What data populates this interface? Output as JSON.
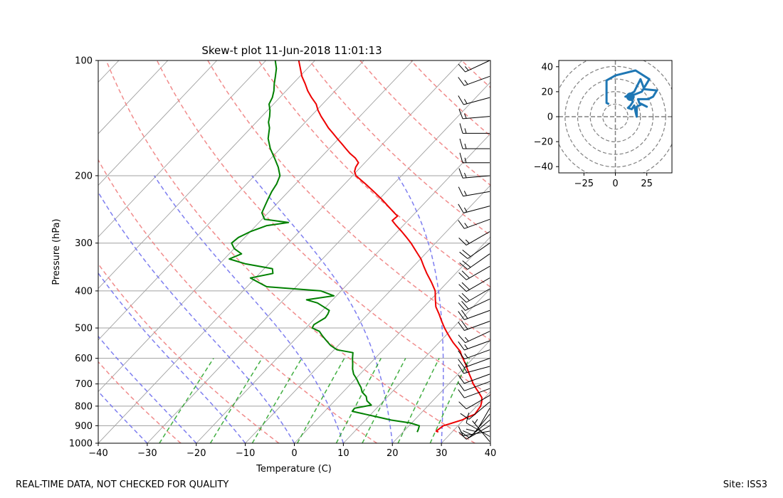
{
  "footer": {
    "left_text": "REAL-TIME DATA, NOT CHECKED FOR QUALITY",
    "right_text": "Site: ISS3"
  },
  "colors": {
    "temperature": "#ee0000",
    "dewpoint": "#008000",
    "dry_adiabat": "#f08080",
    "moist_adiabat": "#7070ee",
    "mixing_ratio": "#20a020",
    "isotherm": "#a0a0a0",
    "hodograph": "#1f77b4",
    "barb": "#000000"
  },
  "chart_data": [
    {
      "type": "line",
      "kind": "skew-t",
      "title": "Skew-t plot 11-Jun-2018 11:01:13",
      "xlabel": "Temperature (C)",
      "ylabel": "Pressure (hPa)",
      "xlim": [
        -40,
        40
      ],
      "ylim": [
        1000,
        100
      ],
      "yscale": "log",
      "xticks": [
        -40,
        -30,
        -20,
        -10,
        0,
        10,
        20,
        30,
        40
      ],
      "yticks": [
        100,
        200,
        300,
        400,
        500,
        600,
        700,
        800,
        900,
        1000
      ],
      "grid": true,
      "series": [
        {
          "id": "temperature",
          "points": [
            [
              935,
              27.2
            ],
            [
              930,
              26.6
            ],
            [
              915,
              26.8
            ],
            [
              900,
              27.0
            ],
            [
              890,
              27.9
            ],
            [
              880,
              28.8
            ],
            [
              868,
              29.8
            ],
            [
              855,
              30.3
            ],
            [
              840,
              31.2
            ],
            [
              820,
              31.0
            ],
            [
              800,
              30.8
            ],
            [
              780,
              30.2
            ],
            [
              760,
              29.4
            ],
            [
              740,
              28.0
            ],
            [
              720,
              26.5
            ],
            [
              700,
              25.0
            ],
            [
              680,
              23.7
            ],
            [
              660,
              22.3
            ],
            [
              640,
              20.9
            ],
            [
              620,
              19.5
            ],
            [
              600,
              17.9
            ],
            [
              590,
              17.1
            ],
            [
              575,
              16.0
            ],
            [
              560,
              14.4
            ],
            [
              545,
              12.8
            ],
            [
              530,
              11.3
            ],
            [
              515,
              9.8
            ],
            [
              500,
              8.3
            ],
            [
              480,
              6.4
            ],
            [
              460,
              4.5
            ],
            [
              440,
              2.4
            ],
            [
              420,
              0.8
            ],
            [
              400,
              -0.8
            ],
            [
              380,
              -3.2
            ],
            [
              360,
              -5.9
            ],
            [
              345,
              -7.9
            ],
            [
              330,
              -9.9
            ],
            [
              315,
              -12.4
            ],
            [
              300,
              -15.0
            ],
            [
              290,
              -17.0
            ],
            [
              280,
              -19.1
            ],
            [
              270,
              -21.4
            ],
            [
              262,
              -23.2
            ],
            [
              255,
              -23.0
            ],
            [
              250,
              -24.3
            ],
            [
              240,
              -26.9
            ],
            [
              230,
              -29.6
            ],
            [
              220,
              -32.6
            ],
            [
              210,
              -35.8
            ],
            [
              200,
              -39.3
            ],
            [
              195,
              -40.4
            ],
            [
              190,
              -41.0
            ],
            [
              185,
              -41.3
            ],
            [
              180,
              -42.8
            ],
            [
              175,
              -44.8
            ],
            [
              170,
              -46.6
            ],
            [
              165,
              -48.4
            ],
            [
              160,
              -50.3
            ],
            [
              155,
              -52.2
            ],
            [
              150,
              -54.2
            ],
            [
              145,
              -56.0
            ],
            [
              140,
              -57.9
            ],
            [
              135,
              -59.7
            ],
            [
              130,
              -61.3
            ],
            [
              125,
              -63.5
            ],
            [
              120,
              -65.6
            ],
            [
              115,
              -67.5
            ],
            [
              110,
              -69.6
            ],
            [
              105,
              -71.4
            ],
            [
              100,
              -73.3
            ]
          ]
        },
        {
          "id": "dewpoint",
          "points": [
            [
              935,
              22.9
            ],
            [
              920,
              22.6
            ],
            [
              900,
              22.1
            ],
            [
              885,
              19.7
            ],
            [
              870,
              15.3
            ],
            [
              855,
              12.1
            ],
            [
              840,
              8.9
            ],
            [
              825,
              5.6
            ],
            [
              810,
              5.5
            ],
            [
              795,
              8.3
            ],
            [
              775,
              6.6
            ],
            [
              755,
              5.6
            ],
            [
              735,
              3.9
            ],
            [
              715,
              2.8
            ],
            [
              700,
              1.7
            ],
            [
              680,
              0.3
            ],
            [
              660,
              -1.3
            ],
            [
              640,
              -2.5
            ],
            [
              620,
              -3.5
            ],
            [
              600,
              -4.6
            ],
            [
              580,
              -5.6
            ],
            [
              570,
              -9.4
            ],
            [
              555,
              -11.6
            ],
            [
              540,
              -13.3
            ],
            [
              525,
              -15.0
            ],
            [
              510,
              -16.6
            ],
            [
              500,
              -18.7
            ],
            [
              490,
              -19.0
            ],
            [
              480,
              -18.5
            ],
            [
              470,
              -18.0
            ],
            [
              460,
              -18.2
            ],
            [
              450,
              -18.6
            ],
            [
              440,
              -20.5
            ],
            [
              430,
              -22.5
            ],
            [
              422,
              -25.3
            ],
            [
              412,
              -20.5
            ],
            [
              400,
              -24.1
            ],
            [
              390,
              -36.0
            ],
            [
              380,
              -38.5
            ],
            [
              370,
              -41.0
            ],
            [
              360,
              -37.3
            ],
            [
              350,
              -38.3
            ],
            [
              340,
              -44.7
            ],
            [
              330,
              -49.0
            ],
            [
              320,
              -47.5
            ],
            [
              310,
              -50.0
            ],
            [
              300,
              -51.6
            ],
            [
              290,
              -51.3
            ],
            [
              280,
              -50.0
            ],
            [
              270,
              -47.8
            ],
            [
              265,
              -44.0
            ],
            [
              260,
              -49.5
            ],
            [
              250,
              -51.3
            ],
            [
              240,
              -52.0
            ],
            [
              230,
              -52.7
            ],
            [
              220,
              -53.4
            ],
            [
              210,
              -53.9
            ],
            [
              200,
              -54.8
            ],
            [
              190,
              -56.8
            ],
            [
              180,
              -59.3
            ],
            [
              170,
              -62.0
            ],
            [
              160,
              -64.4
            ],
            [
              150,
              -66.2
            ],
            [
              145,
              -67.5
            ],
            [
              140,
              -68.4
            ],
            [
              135,
              -69.5
            ],
            [
              130,
              -70.9
            ],
            [
              125,
              -71.5
            ],
            [
              120,
              -72.5
            ],
            [
              115,
              -73.8
            ],
            [
              110,
              -75.0
            ],
            [
              105,
              -76.3
            ],
            [
              100,
              -78.1
            ]
          ]
        }
      ],
      "dry_adiabats_theta_K": [
        250,
        270,
        290,
        310,
        330,
        350,
        370,
        390,
        410,
        430,
        450,
        470
      ],
      "moist_adiabats_start_C": [
        -40,
        -30,
        -20,
        -10,
        0,
        10,
        20,
        30
      ],
      "mixing_ratio_lines_g_kg": [
        0.4,
        1,
        2,
        4,
        7,
        10,
        16,
        24
      ],
      "wind_barbs": [
        {
          "p": 990,
          "spd": 5,
          "dir": 320
        },
        {
          "p": 960,
          "spd": 10,
          "dir": 300
        },
        {
          "p": 930,
          "spd": 10,
          "dir": 260
        },
        {
          "p": 900,
          "spd": 10,
          "dir": 240
        },
        {
          "p": 870,
          "spd": 10,
          "dir": 230
        },
        {
          "p": 840,
          "spd": 10,
          "dir": 220
        },
        {
          "p": 810,
          "spd": 10,
          "dir": 210
        },
        {
          "p": 780,
          "spd": 10,
          "dir": 230
        },
        {
          "p": 750,
          "spd": 10,
          "dir": 240
        },
        {
          "p": 720,
          "spd": 10,
          "dir": 250
        },
        {
          "p": 690,
          "spd": 10,
          "dir": 250
        },
        {
          "p": 660,
          "spd": 10,
          "dir": 250
        },
        {
          "p": 630,
          "spd": 15,
          "dir": 255
        },
        {
          "p": 600,
          "spd": 15,
          "dir": 250
        },
        {
          "p": 570,
          "spd": 15,
          "dir": 250
        },
        {
          "p": 540,
          "spd": 15,
          "dir": 250
        },
        {
          "p": 510,
          "spd": 15,
          "dir": 245
        },
        {
          "p": 480,
          "spd": 20,
          "dir": 250
        },
        {
          "p": 450,
          "spd": 20,
          "dir": 250
        },
        {
          "p": 420,
          "spd": 20,
          "dir": 245
        },
        {
          "p": 395,
          "spd": 20,
          "dir": 240
        },
        {
          "p": 370,
          "spd": 20,
          "dir": 240
        },
        {
          "p": 345,
          "spd": 20,
          "dir": 240
        },
        {
          "p": 320,
          "spd": 20,
          "dir": 235
        },
        {
          "p": 300,
          "spd": 20,
          "dir": 235
        },
        {
          "p": 280,
          "spd": 15,
          "dir": 240
        },
        {
          "p": 260,
          "spd": 15,
          "dir": 250
        },
        {
          "p": 240,
          "spd": 15,
          "dir": 255
        },
        {
          "p": 220,
          "spd": 15,
          "dir": 260
        },
        {
          "p": 200,
          "spd": 15,
          "dir": 265
        },
        {
          "p": 185,
          "spd": 15,
          "dir": 270
        },
        {
          "p": 170,
          "spd": 15,
          "dir": 270
        },
        {
          "p": 155,
          "spd": 15,
          "dir": 270
        },
        {
          "p": 140,
          "spd": 15,
          "dir": 265
        },
        {
          "p": 125,
          "spd": 15,
          "dir": 255
        },
        {
          "p": 110,
          "spd": 15,
          "dir": 250
        },
        {
          "p": 100,
          "spd": 15,
          "dir": 245
        }
      ]
    },
    {
      "type": "line",
      "kind": "hodograph",
      "xlim": [
        -45,
        45
      ],
      "ylim": [
        -45,
        45
      ],
      "xticks": [
        -25,
        0,
        25
      ],
      "yticks": [
        -40,
        -20,
        0,
        20,
        40
      ],
      "range_rings": [
        10,
        20,
        30,
        40,
        50
      ],
      "points": [
        [
          10,
          18
        ],
        [
          12,
          15
        ],
        [
          14,
          12
        ],
        [
          12,
          9
        ],
        [
          10,
          7
        ],
        [
          13,
          6
        ],
        [
          15,
          9
        ],
        [
          16,
          4
        ],
        [
          17,
          0
        ],
        [
          17,
          8
        ],
        [
          21,
          10
        ],
        [
          25,
          8
        ],
        [
          19,
          11
        ],
        [
          18,
          14
        ],
        [
          26,
          14
        ],
        [
          30,
          16
        ],
        [
          33,
          21
        ],
        [
          23,
          22
        ],
        [
          20,
          30
        ],
        [
          15,
          20
        ],
        [
          8,
          16
        ],
        [
          12,
          17
        ],
        [
          16,
          18
        ],
        [
          21,
          20
        ],
        [
          27,
          30
        ],
        [
          16,
          37
        ],
        [
          0,
          33
        ],
        [
          -7,
          29
        ],
        [
          -7,
          20
        ],
        [
          -7,
          11
        ],
        [
          -5,
          10
        ]
      ]
    }
  ]
}
